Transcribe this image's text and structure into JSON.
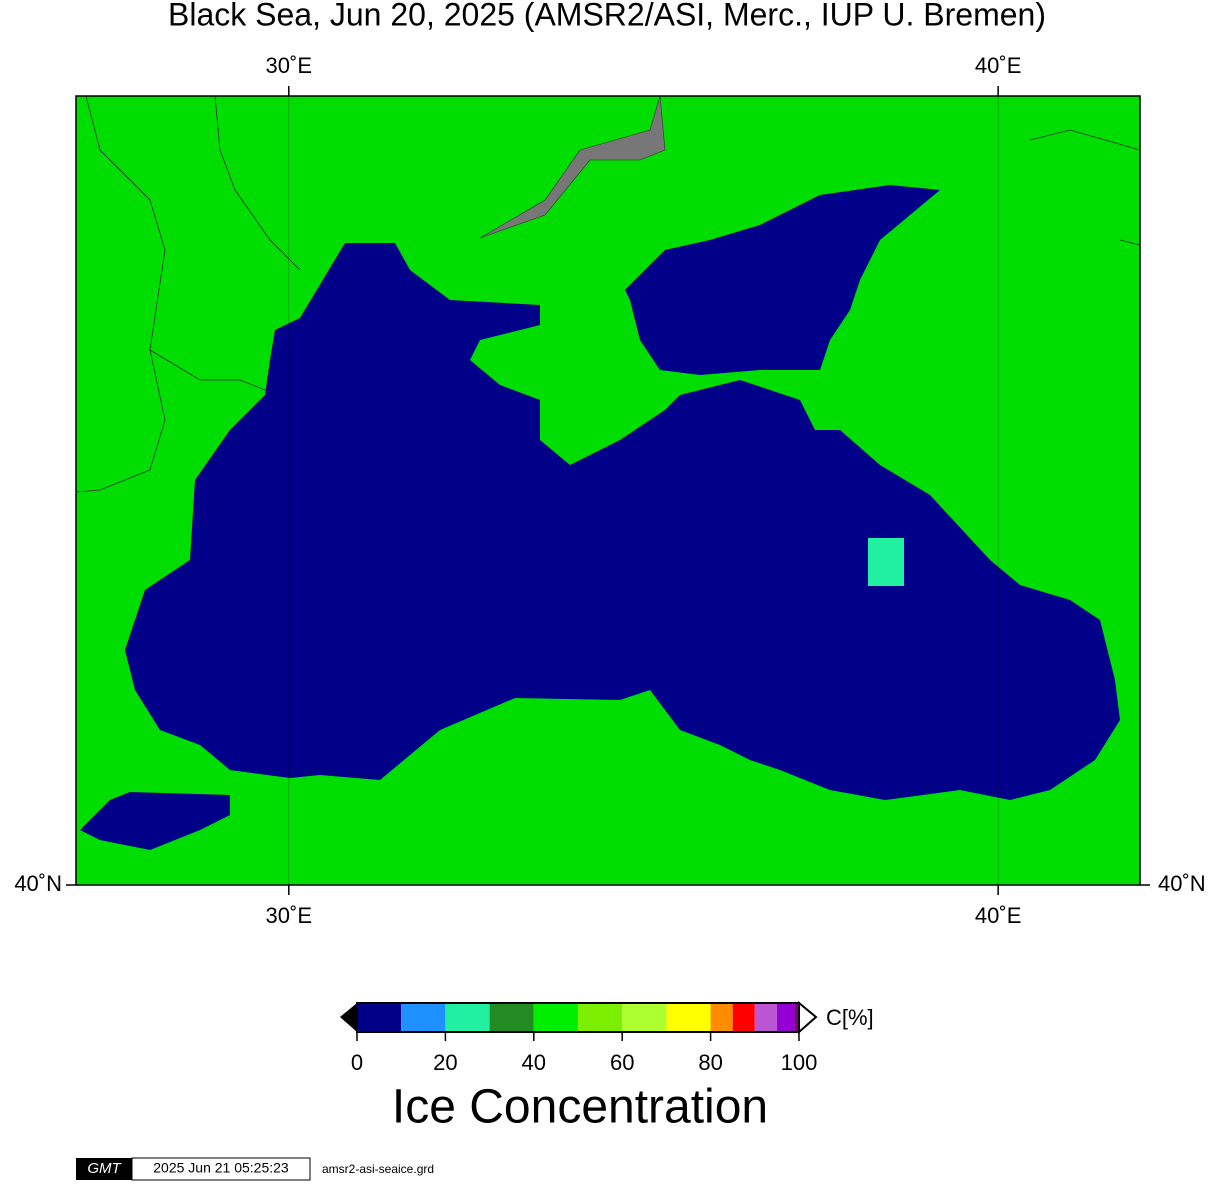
{
  "title": "Black Sea, Jun 20, 2025 (AMSR2/ASI, Merc., IUP U. Bremen)",
  "map": {
    "xlim": [
      27,
      42
    ],
    "ylim": [
      40,
      48
    ],
    "xticks": [
      {
        "value": 30,
        "label": "30˚E"
      },
      {
        "value": 40,
        "label": "40˚E"
      }
    ],
    "yticks": [
      {
        "value": 40,
        "label": "40˚N"
      }
    ],
    "land_color": "#00dd00",
    "sea_color": "#000088"
  },
  "colorbar": {
    "unit": "C[%]",
    "label": "Ice Concentration",
    "lim": [
      0,
      100
    ],
    "bounds": [
      0,
      10,
      20,
      30,
      40,
      50,
      60,
      70,
      80,
      85,
      90,
      95,
      99,
      100
    ],
    "colors": [
      "#000088",
      "#1e90ff",
      "#20f0a0",
      "#228b22",
      "#00ee00",
      "#7cee00",
      "#adff2f",
      "#ffff00",
      "#ff8c00",
      "#ff0000",
      "#ba55d3",
      "#9400d3",
      "#800080"
    ],
    "ticks": [
      0,
      20,
      40,
      60,
      80,
      100
    ]
  },
  "footer": {
    "logo": "GMT",
    "timestamp": "2025 Jun 21 05:25:23",
    "file": "amsr2-asi-seaice.grd"
  }
}
